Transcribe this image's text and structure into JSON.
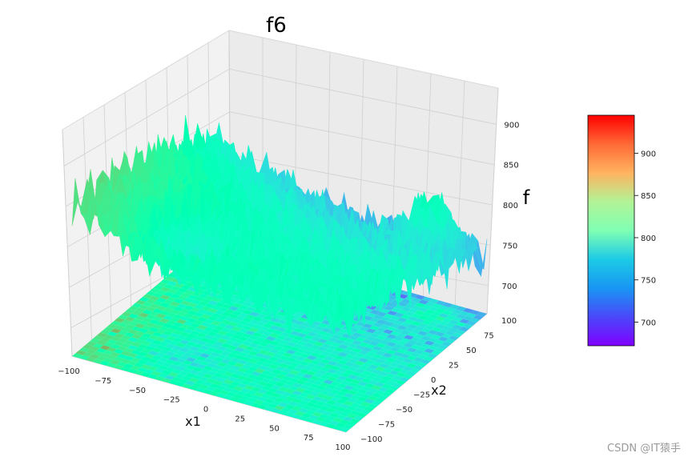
{
  "chart_data": {
    "type": "surface3d",
    "title": "f6",
    "xlabel": "x1",
    "ylabel": "x2",
    "zlabel": "f",
    "x_range": [
      -100,
      100
    ],
    "y_range": [
      -100,
      100
    ],
    "z_range": [
      665,
      945
    ],
    "x_ticks": [
      "−100",
      "−75",
      "−50",
      "−25",
      "0",
      "25",
      "50",
      "75",
      "100"
    ],
    "y_ticks": [
      "−100",
      "−75",
      "−50",
      "−25",
      "0",
      "25",
      "50",
      "75",
      "100"
    ],
    "z_ticks": [
      "700",
      "750",
      "800",
      "850",
      "900"
    ],
    "colormap": "rainbow",
    "colorbar": {
      "ticks": [
        "700",
        "750",
        "800",
        "850",
        "900"
      ],
      "range": [
        672,
        945
      ]
    },
    "grid": true,
    "floor_contour": true
  },
  "watermark": "CSDN @IT猿手"
}
